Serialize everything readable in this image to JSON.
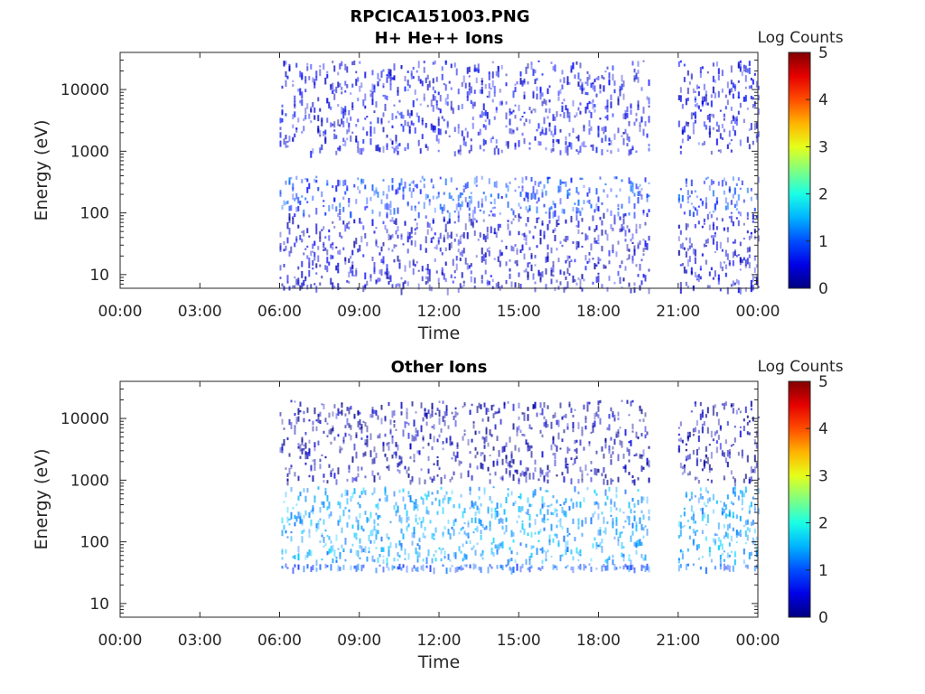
{
  "figure_title": "RPCICA151003.PNG",
  "chart_data": [
    {
      "type": "heatmap",
      "title": "H+ He++ Ions",
      "xlabel": "Time",
      "ylabel": "Energy (eV)",
      "x_ticks": [
        "00:00",
        "03:00",
        "06:00",
        "09:00",
        "12:00",
        "15:00",
        "18:00",
        "21:00",
        "00:00"
      ],
      "y_ticks": [
        {
          "value": 10,
          "label": "10"
        },
        {
          "value": 100,
          "label": "100"
        },
        {
          "value": 1000,
          "label": "1000"
        },
        {
          "value": 10000,
          "label": "10000"
        }
      ],
      "x_range_hours": [
        0,
        24
      ],
      "y_range_ev": [
        6,
        40000
      ],
      "y_scale": "log",
      "colorbar": {
        "label": "Log Counts",
        "range": [
          0,
          5
        ],
        "ticks": [
          "0",
          "1",
          "2",
          "3",
          "4",
          "5"
        ],
        "colormap": "jet"
      },
      "data_segments_hours": [
        [
          6.0,
          6.4
        ],
        [
          6.4,
          9.3
        ],
        [
          9.4,
          10.7
        ],
        [
          10.8,
          14.4
        ],
        [
          14.5,
          19.9
        ],
        [
          21.0,
          24.0
        ]
      ],
      "regions": [
        {
          "name": "sparse high-energy ions",
          "t_start": 6.0,
          "t_end": 24.0,
          "e_low": 1000,
          "e_high": 30000,
          "log_counts": 0.5
        },
        {
          "name": "main ion band",
          "t_start": 6.0,
          "t_end": 24.0,
          "e_low": 100,
          "e_high": 400,
          "log_counts": 0.9
        },
        {
          "name": "low-energy ions",
          "t_start": 6.0,
          "t_end": 24.0,
          "e_low": 6,
          "e_high": 100,
          "log_counts": 0.4
        }
      ]
    },
    {
      "type": "heatmap",
      "title": "Other Ions",
      "xlabel": "Time",
      "ylabel": "Energy (eV)",
      "x_ticks": [
        "00:00",
        "03:00",
        "06:00",
        "09:00",
        "12:00",
        "15:00",
        "18:00",
        "21:00",
        "00:00"
      ],
      "y_ticks": [
        {
          "value": 10,
          "label": "10"
        },
        {
          "value": 100,
          "label": "100"
        },
        {
          "value": 1000,
          "label": "1000"
        },
        {
          "value": 10000,
          "label": "10000"
        }
      ],
      "x_range_hours": [
        0,
        24
      ],
      "y_range_ev": [
        6,
        40000
      ],
      "y_scale": "log",
      "colorbar": {
        "label": "Log Counts",
        "range": [
          0,
          5
        ],
        "ticks": [
          "0",
          "1",
          "2",
          "3",
          "4",
          "5"
        ],
        "colormap": "jet"
      },
      "data_segments_hours": [
        [
          6.0,
          19.9
        ],
        [
          21.0,
          24.0
        ]
      ],
      "regions": [
        {
          "name": "main ion band",
          "t_start": 6.0,
          "t_end": 24.0,
          "e_low": 50,
          "e_high": 800,
          "log_counts": 1.4
        },
        {
          "name": "low-energy line",
          "t_start": 6.0,
          "t_end": 24.0,
          "e_low": 38,
          "e_high": 45,
          "log_counts": 1.0
        },
        {
          "name": "sparse high-energy ions",
          "t_start": 6.0,
          "t_end": 24.0,
          "e_low": 1000,
          "e_high": 20000,
          "log_counts": 0.2
        }
      ]
    }
  ]
}
